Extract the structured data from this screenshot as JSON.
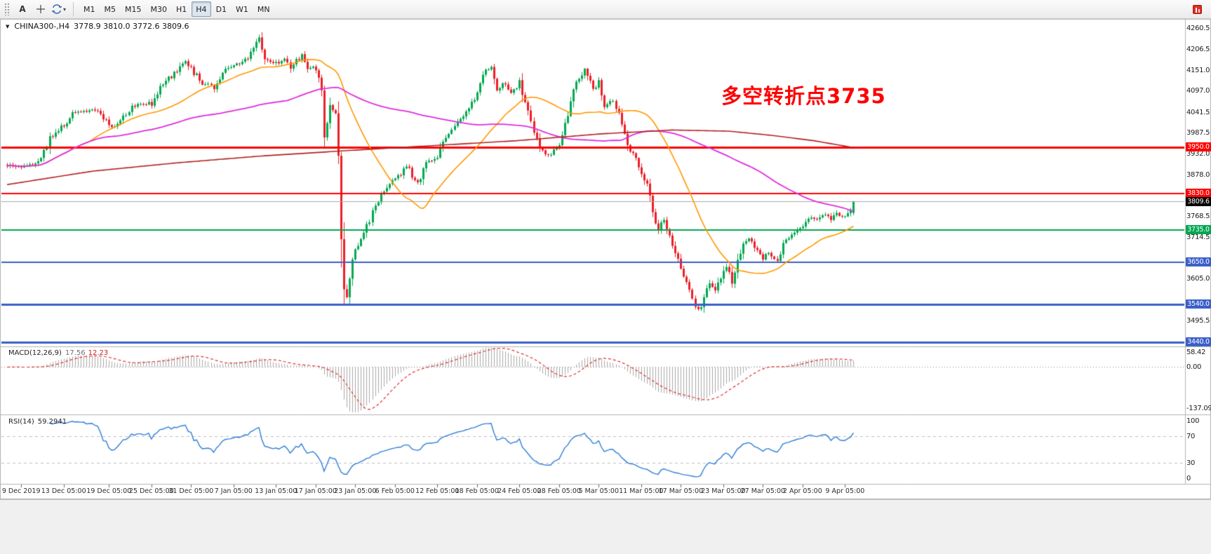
{
  "icons": {
    "symbol_arrow": "▼",
    "dropdown_caret": "▾"
  },
  "toolbar": {
    "text_tool_label": "A",
    "timeframes": [
      {
        "label": "M1",
        "active": false
      },
      {
        "label": "M5",
        "active": false
      },
      {
        "label": "M15",
        "active": false
      },
      {
        "label": "M30",
        "active": false
      },
      {
        "label": "H1",
        "active": false
      },
      {
        "label": "H4",
        "active": true
      },
      {
        "label": "D1",
        "active": false
      },
      {
        "label": "W1",
        "active": false
      },
      {
        "label": "MN",
        "active": false
      }
    ]
  },
  "chart_header": {
    "symbol": "CHINA300-,H4",
    "ohlc": "3778.9 3810.0 3772.6 3809.6"
  },
  "annotation": {
    "text": "多空转折点3735",
    "color": "#ff0000"
  },
  "price_axis": {
    "labels": [
      "4260.5",
      "4206.5",
      "4151.0",
      "4097.0",
      "4041.5",
      "3987.5",
      "3932.0",
      "3878.0",
      "3768.5",
      "3714.5",
      "3605.0",
      "3495.5"
    ]
  },
  "hlines": [
    {
      "price": 3950.0,
      "label": "3950.0",
      "color": "#ff0000",
      "width": 3
    },
    {
      "price": 3830.0,
      "label": "3830.0",
      "color": "#ff0000",
      "width": 2
    },
    {
      "price": 3810.0,
      "color": "#a8a8a8",
      "width": 1
    },
    {
      "price": 3735.0,
      "label": "3735.0",
      "color": "#00a651",
      "width": 2
    },
    {
      "price": 3650.0,
      "label": "3650.0",
      "color": "#3a5fc8",
      "width": 2
    },
    {
      "price": 3540.0,
      "label": "3540.0",
      "color": "#3a5fc8",
      "width": 3
    },
    {
      "price": 3440.0,
      "label": "3440.0",
      "color": "#3a5fc8",
      "width": 3
    }
  ],
  "current_price": {
    "label": "3809.6",
    "bg": "#000000",
    "price": 3809.6
  },
  "macd_panel": {
    "title": "MACD(12,26,9)",
    "value_main": "17.56",
    "value_signal": "12.23",
    "axis_labels": [
      "58.42",
      "0.00",
      "-137.09"
    ]
  },
  "rsi_panel": {
    "title": "RSI(14)",
    "value": "59.2941",
    "axis_labels": [
      "100",
      "70",
      "30",
      "0"
    ]
  },
  "chart_data": {
    "type": "candlestick",
    "title": "CHINA300- H4",
    "bars": 300,
    "ylim": [
      3433,
      4285
    ],
    "ohlc_current": {
      "open": 3778.9,
      "high": 3810.0,
      "low": 3772.6,
      "close": 3809.6
    },
    "candle_up_color": "#00a94f",
    "candle_down_color": "#eb1f27",
    "price_anchors": [
      [
        0,
        3905
      ],
      [
        5,
        3898
      ],
      [
        12,
        3915
      ],
      [
        15,
        3975
      ],
      [
        20,
        4008
      ],
      [
        23,
        4040
      ],
      [
        28,
        4046
      ],
      [
        32,
        4050
      ],
      [
        35,
        4020
      ],
      [
        37,
        4000
      ],
      [
        40,
        4025
      ],
      [
        45,
        4060
      ],
      [
        51,
        4068
      ],
      [
        55,
        4115
      ],
      [
        60,
        4150
      ],
      [
        63,
        4172
      ],
      [
        65,
        4155
      ],
      [
        69,
        4118
      ],
      [
        73,
        4110
      ],
      [
        76,
        4148
      ],
      [
        80,
        4165
      ],
      [
        84,
        4175
      ],
      [
        87,
        4215
      ],
      [
        89,
        4232
      ],
      [
        91,
        4182
      ],
      [
        95,
        4170
      ],
      [
        98,
        4185
      ],
      [
        100,
        4162
      ],
      [
        104,
        4190
      ],
      [
        106,
        4152
      ],
      [
        109,
        4162
      ],
      [
        111,
        4100
      ],
      [
        112,
        3985
      ],
      [
        114,
        4058
      ],
      [
        116,
        4040
      ],
      [
        117,
        3920
      ],
      [
        118,
        3705
      ],
      [
        119,
        3585
      ],
      [
        120,
        3560
      ],
      [
        121,
        3615
      ],
      [
        123,
        3680
      ],
      [
        126,
        3730
      ],
      [
        129,
        3778
      ],
      [
        132,
        3828
      ],
      [
        137,
        3868
      ],
      [
        141,
        3900
      ],
      [
        145,
        3858
      ],
      [
        148,
        3908
      ],
      [
        152,
        3930
      ],
      [
        156,
        3988
      ],
      [
        160,
        4020
      ],
      [
        163,
        4058
      ],
      [
        166,
        4088
      ],
      [
        168,
        4145
      ],
      [
        171,
        4160
      ],
      [
        173,
        4100
      ],
      [
        176,
        4120
      ],
      [
        178,
        4088
      ],
      [
        181,
        4118
      ],
      [
        183,
        4060
      ],
      [
        186,
        3990
      ],
      [
        188,
        3945
      ],
      [
        191,
        3930
      ],
      [
        195,
        3962
      ],
      [
        198,
        4040
      ],
      [
        201,
        4128
      ],
      [
        204,
        4150
      ],
      [
        207,
        4100
      ],
      [
        209,
        4120
      ],
      [
        211,
        4060
      ],
      [
        214,
        4080
      ],
      [
        217,
        4020
      ],
      [
        219,
        3958
      ],
      [
        222,
        3918
      ],
      [
        224,
        3888
      ],
      [
        226,
        3848
      ],
      [
        228,
        3780
      ],
      [
        230,
        3728
      ],
      [
        232,
        3768
      ],
      [
        234,
        3718
      ],
      [
        236,
        3678
      ],
      [
        238,
        3638
      ],
      [
        240,
        3598
      ],
      [
        242,
        3558
      ],
      [
        244,
        3520
      ],
      [
        246,
        3558
      ],
      [
        248,
        3598
      ],
      [
        250,
        3578
      ],
      [
        252,
        3610
      ],
      [
        254,
        3638
      ],
      [
        256,
        3600
      ],
      [
        258,
        3648
      ],
      [
        260,
        3698
      ],
      [
        262,
        3718
      ],
      [
        264,
        3688
      ],
      [
        267,
        3660
      ],
      [
        269,
        3678
      ],
      [
        272,
        3652
      ],
      [
        274,
        3698
      ],
      [
        277,
        3718
      ],
      [
        279,
        3738
      ],
      [
        281,
        3748
      ],
      [
        284,
        3768
      ],
      [
        286,
        3758
      ],
      [
        289,
        3774
      ],
      [
        291,
        3764
      ],
      [
        293,
        3778
      ],
      [
        296,
        3768
      ],
      [
        298,
        3786
      ],
      [
        299,
        3809.6
      ]
    ],
    "moving_averages": [
      {
        "name": "ma-fast",
        "type": "sma",
        "period": 30,
        "color": "#ff9900",
        "width": 1.6
      },
      {
        "name": "ma-medium",
        "type": "sma",
        "period": 100,
        "color": "#df2ddf",
        "width": 1.8
      },
      {
        "name": "ma-slow",
        "type": "anchors",
        "color": "#b22222",
        "width": 1.6,
        "anchors": [
          [
            0,
            3853
          ],
          [
            30,
            3888
          ],
          [
            60,
            3910
          ],
          [
            90,
            3928
          ],
          [
            120,
            3942
          ],
          [
            150,
            3955
          ],
          [
            180,
            3968
          ],
          [
            210,
            3986
          ],
          [
            235,
            3996
          ],
          [
            255,
            3993
          ],
          [
            270,
            3982
          ],
          [
            285,
            3968
          ],
          [
            299,
            3950
          ]
        ]
      }
    ],
    "indicators": {
      "macd": {
        "fast": 12,
        "slow": 26,
        "signal": 9,
        "range": [
          -137.09,
          58.42
        ],
        "histogram_color": "#a9a9a9",
        "signal_color": "#e03030",
        "zero_line_color": "#909090"
      },
      "rsi": {
        "period": 14,
        "color": "#2f7ed8",
        "levels": [
          70,
          30
        ],
        "range": [
          0,
          100
        ],
        "level_color": "#c0c0c0"
      }
    },
    "time_labels": [
      {
        "i": 5,
        "label": "9 Dec 2019"
      },
      {
        "i": 20,
        "label": "13 Dec 05:00"
      },
      {
        "i": 36,
        "label": "19 Dec 05:00"
      },
      {
        "i": 51,
        "label": "25 Dec 05:00"
      },
      {
        "i": 65,
        "label": "31 Dec 05:00"
      },
      {
        "i": 80,
        "label": "7 Jan 05:00"
      },
      {
        "i": 95,
        "label": "13 Jan 05:00"
      },
      {
        "i": 109,
        "label": "17 Jan 05:00"
      },
      {
        "i": 123,
        "label": "23 Jan 05:00"
      },
      {
        "i": 137,
        "label": "6 Feb 05:00"
      },
      {
        "i": 152,
        "label": "12 Feb 05:00"
      },
      {
        "i": 166,
        "label": "18 Feb 05:00"
      },
      {
        "i": 181,
        "label": "24 Feb 05:00"
      },
      {
        "i": 195,
        "label": "28 Feb 05:00"
      },
      {
        "i": 209,
        "label": "5 Mar 05:00"
      },
      {
        "i": 224,
        "label": "11 Mar 05:00"
      },
      {
        "i": 238,
        "label": "17 Mar 05:00"
      },
      {
        "i": 253,
        "label": "23 Mar 05:00"
      },
      {
        "i": 267,
        "label": "27 Mar 05:00"
      },
      {
        "i": 281,
        "label": "2 Apr 05:00"
      },
      {
        "i": 296,
        "label": "9 Apr 05:00"
      }
    ]
  }
}
